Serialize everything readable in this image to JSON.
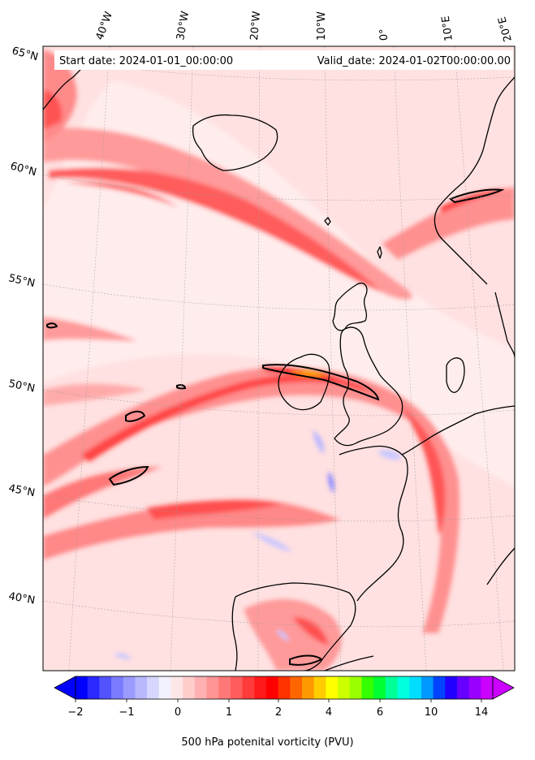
{
  "info": {
    "start_date": "Start date: 2024-01-01_00:00:00",
    "valid_date": "Valid_date: 2024-01-02T00:00:00.00"
  },
  "axes": {
    "lon_labels": [
      "40°W",
      "30°W",
      "20°W",
      "10°W",
      "0°",
      "10°E",
      "20°E"
    ],
    "lat_labels": [
      "65°N",
      "60°N",
      "55°N",
      "50°N",
      "45°N",
      "40°N"
    ]
  },
  "colorbar": {
    "title": "500 hPa potenital vorticity (PVU)",
    "tick_labels": [
      "−2",
      "−1",
      "0",
      "1",
      "2",
      "4",
      "6",
      "10",
      "14"
    ],
    "colors": [
      "#0000ff",
      "#2929ff",
      "#5252ff",
      "#7b7bff",
      "#9a9aff",
      "#b8b8ff",
      "#d6d6ff",
      "#f2f2ff",
      "#ffe6e6",
      "#ffcccc",
      "#ffb0b0",
      "#ff9494",
      "#ff7878",
      "#ff5c5c",
      "#ff3b3b",
      "#ff1a1a",
      "#ff0000",
      "#ff3300",
      "#ff6600",
      "#ff9900",
      "#ffcc00",
      "#ffff00",
      "#ccff00",
      "#99ff00",
      "#33ff00",
      "#00ff33",
      "#00ff99",
      "#00ffdd",
      "#00ddff",
      "#0099ff",
      "#0044ff",
      "#2200ff",
      "#6600ff",
      "#9900ff",
      "#cc00ff"
    ]
  }
}
